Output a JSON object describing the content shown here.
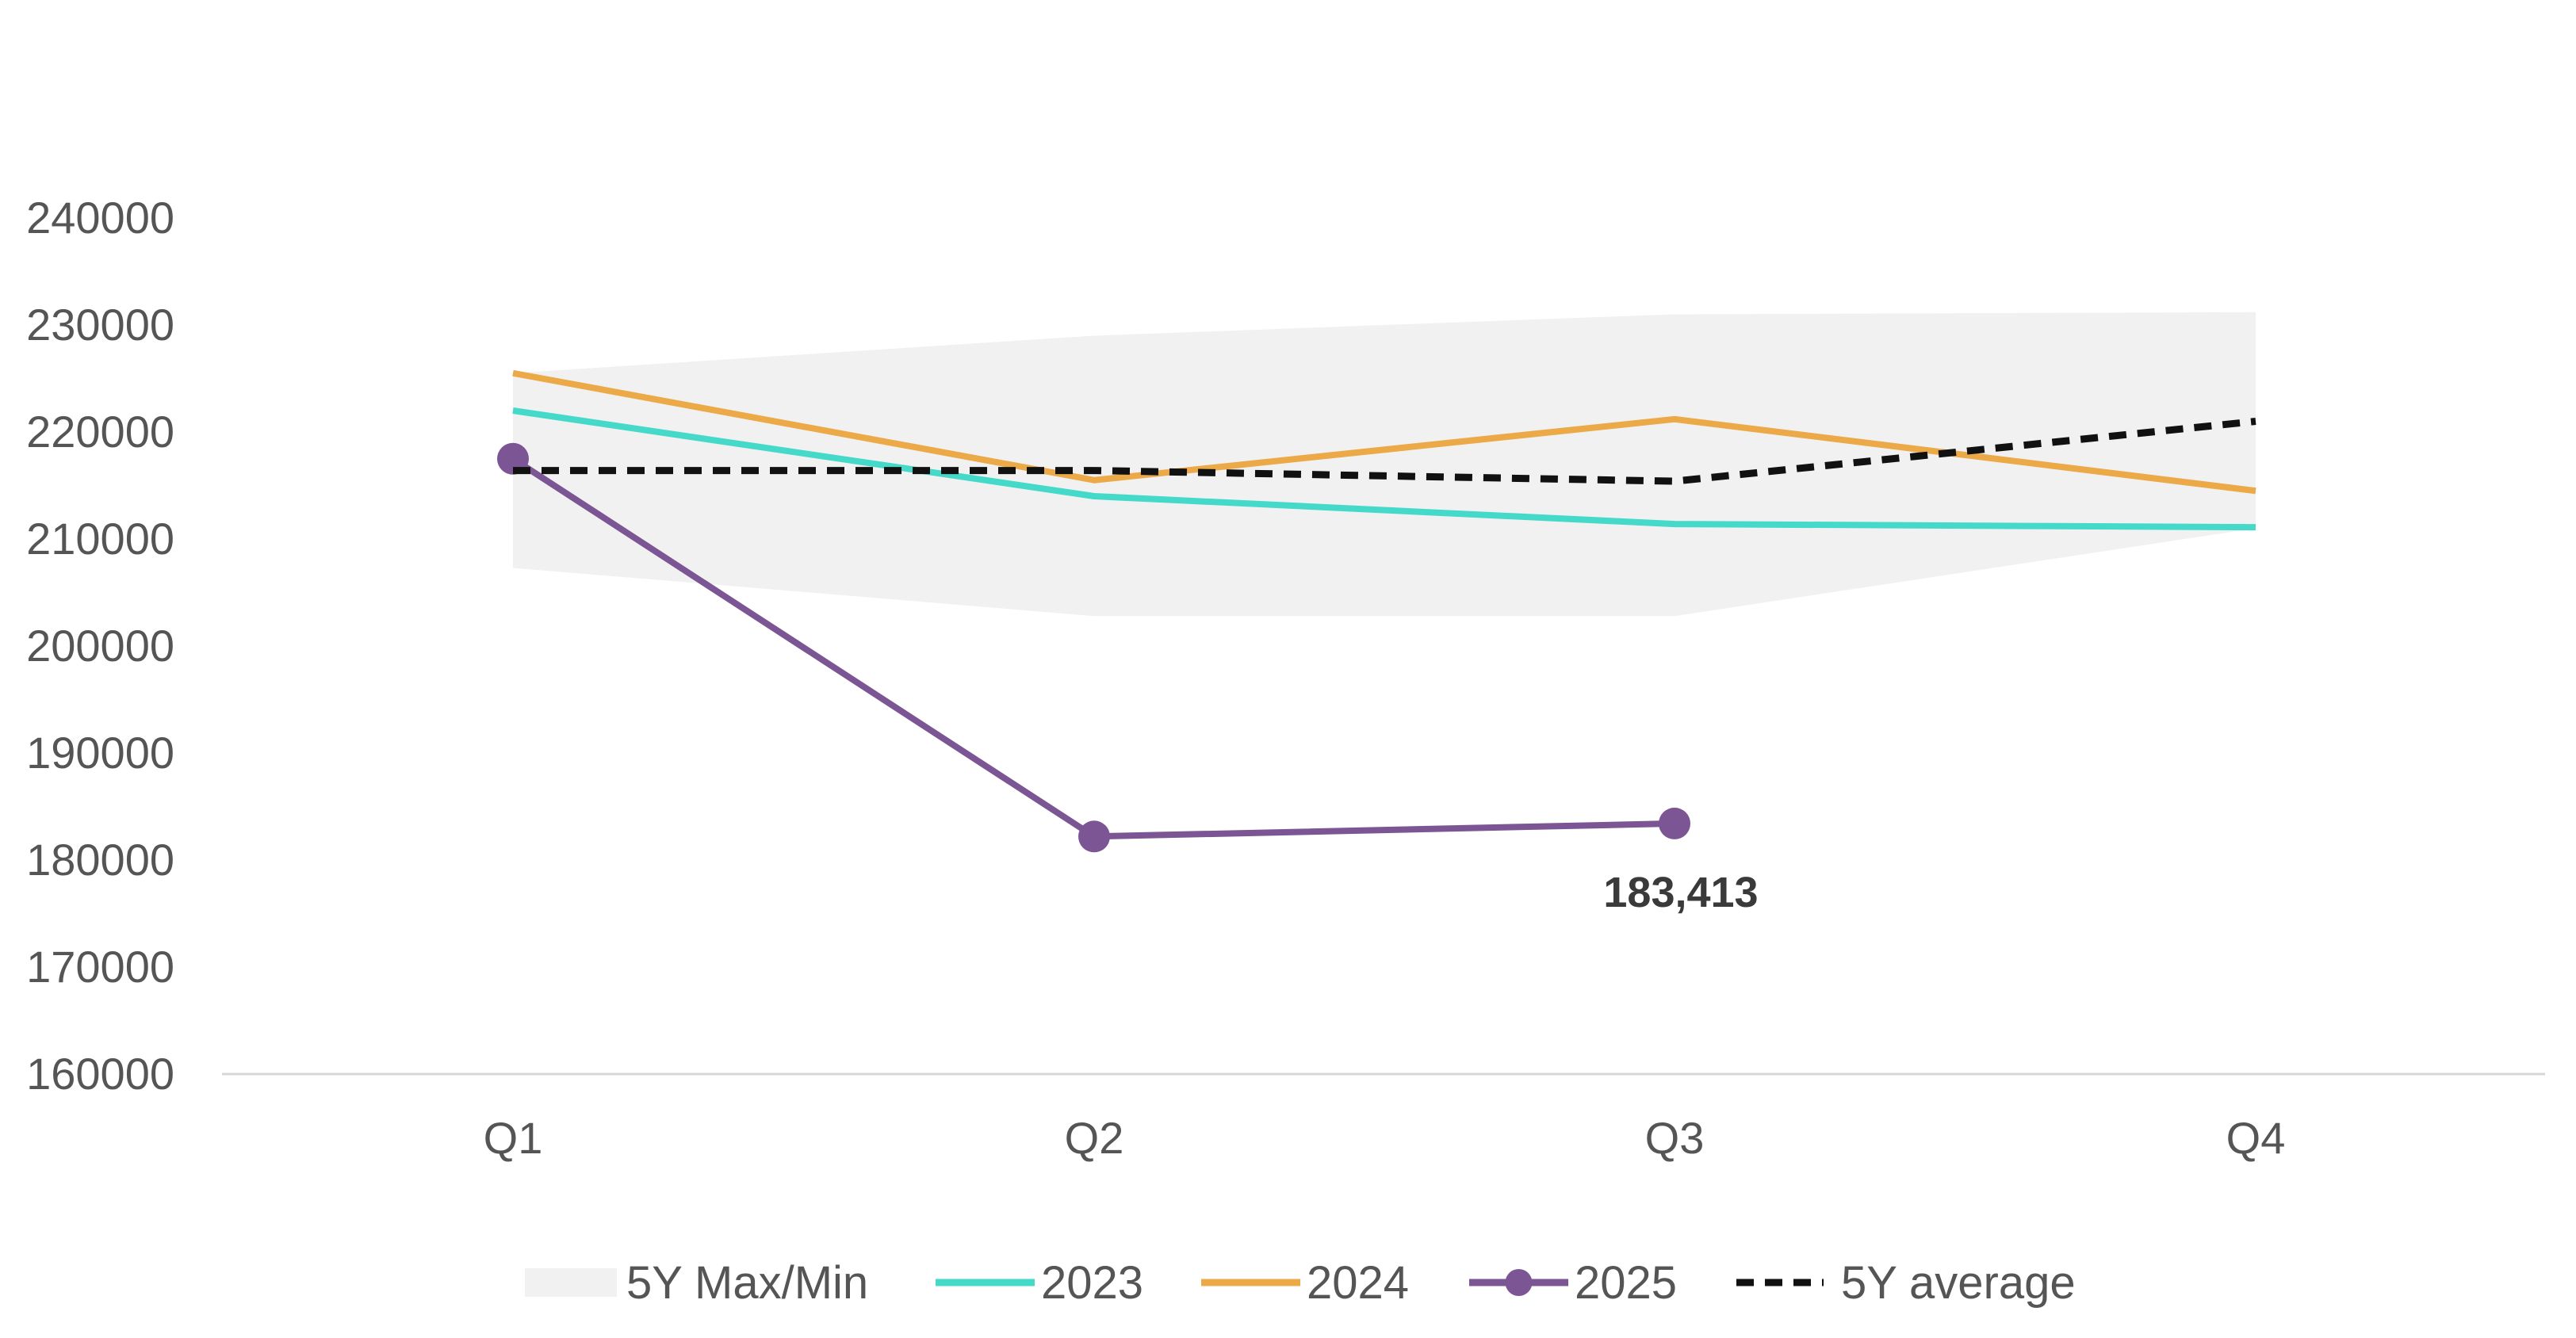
{
  "chart_data": {
    "type": "line",
    "categories": [
      "Q1",
      "Q2",
      "Q3",
      "Q4"
    ],
    "ylim": [
      160000,
      240000
    ],
    "yticks": [
      "160000",
      "170000",
      "180000",
      "190000",
      "200000",
      "210000",
      "220000",
      "230000",
      "240000"
    ],
    "grid": false,
    "legend_position": "bottom",
    "band": {
      "name": "5Y Max/Min",
      "max": [
        225500,
        229000,
        231000,
        231200
      ],
      "min": [
        207300,
        202800,
        202800,
        211000
      ],
      "color": "#f1f1f1"
    },
    "series": [
      {
        "name": "2023",
        "values": [
          222000,
          214000,
          211400,
          211100
        ],
        "color": "#45d9c9",
        "style": "solid",
        "markers": false
      },
      {
        "name": "2024",
        "values": [
          225500,
          215500,
          221200,
          214500
        ],
        "color": "#eca947",
        "style": "solid",
        "markers": false
      },
      {
        "name": "2025",
        "values": [
          217500,
          182200,
          183413,
          null
        ],
        "color": "#7b5594",
        "style": "solid",
        "markers": true
      },
      {
        "name": "5Y average",
        "values": [
          216400,
          216400,
          215400,
          221000
        ],
        "color": "#111111",
        "style": "dashed",
        "markers": false
      }
    ],
    "annotations": [
      {
        "series": "2025",
        "category": "Q3",
        "text": "183,413"
      }
    ]
  }
}
